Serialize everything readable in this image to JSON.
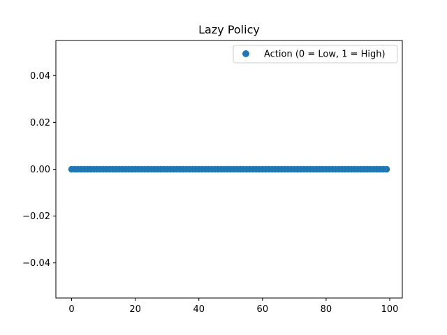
{
  "chart_data": {
    "type": "scatter",
    "title": "Lazy Policy",
    "xlabel": "",
    "ylabel": "",
    "xlim": [
      -4.95,
      103.95
    ],
    "ylim": [
      -0.055,
      0.055
    ],
    "xticks": [
      0,
      20,
      40,
      60,
      80,
      100
    ],
    "yticks": [
      -0.04,
      -0.02,
      0.0,
      0.02,
      0.04
    ],
    "xtick_labels": [
      "0",
      "20",
      "40",
      "60",
      "80",
      "100"
    ],
    "ytick_labels": [
      "−0.04",
      "−0.02",
      "0.00",
      "0.02",
      "0.04"
    ],
    "grid": false,
    "legend_position": "upper right",
    "series": [
      {
        "name": "Action (0 = Low, 1 = High)",
        "color": "#1f77b4",
        "x_start": 0,
        "x_end": 99,
        "x_step": 1,
        "y_constant": 0
      }
    ]
  }
}
